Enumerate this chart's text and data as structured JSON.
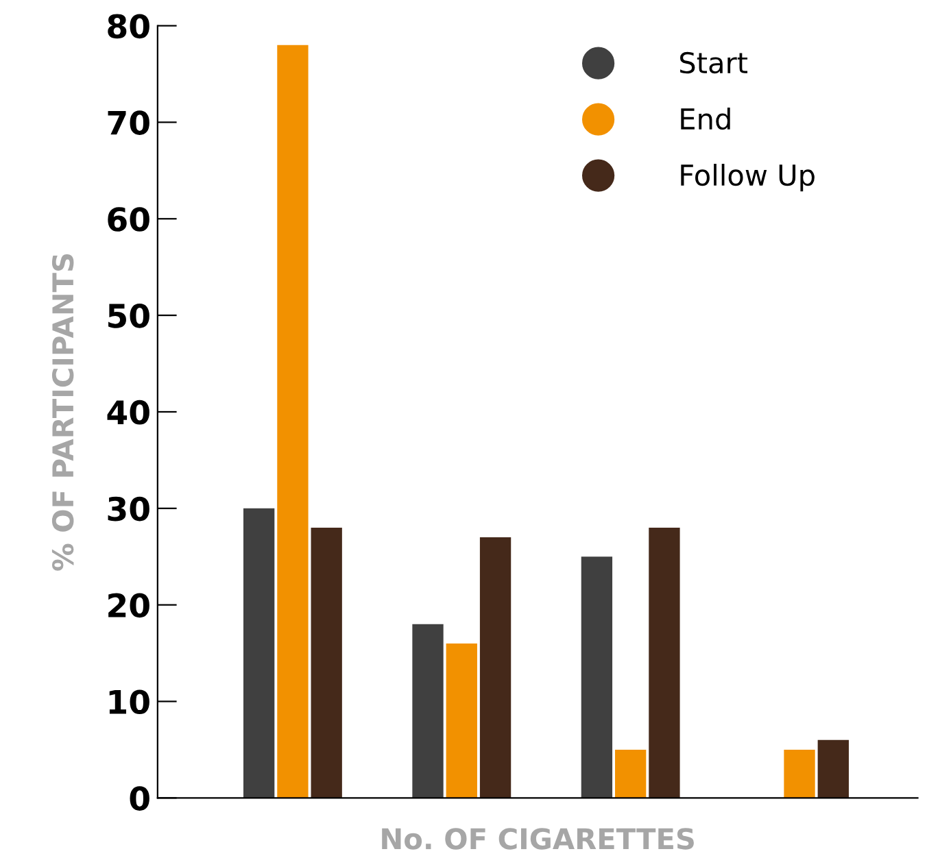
{
  "chart_data": {
    "type": "bar",
    "xlabel": "No. OF CIGARETTES",
    "ylabel": "% OF PARTICIPANTS",
    "categories": [
      null,
      null,
      null,
      null
    ],
    "series": [
      {
        "name": "Start",
        "color": "#404040",
        "values": [
          30,
          18,
          25,
          0
        ]
      },
      {
        "name": "End",
        "color": "#f29100",
        "values": [
          78,
          16,
          5,
          5
        ]
      },
      {
        "name": "Follow Up",
        "color": "#45291a",
        "values": [
          28,
          27,
          28,
          6
        ]
      }
    ],
    "ylim": [
      0,
      80
    ],
    "yticks": [
      0,
      10,
      20,
      30,
      40,
      50,
      60,
      70,
      80
    ],
    "grid": false,
    "legend": "top right"
  }
}
